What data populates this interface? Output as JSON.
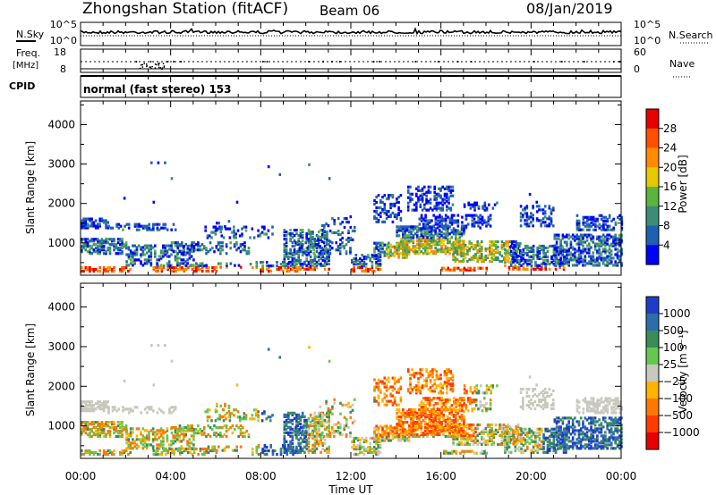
{
  "header": {
    "station": "Zhongshan Station (fitACF)",
    "beam": "Beam 06",
    "date": "08/Jan/2019"
  },
  "top_panels": {
    "nsky_label": "N.Sky",
    "nsearch_label": "N.Search",
    "nsky_ticks": [
      "10^5",
      "10^0"
    ],
    "nsearch_ticks": [
      "10^5",
      "10^0"
    ],
    "freq_label": "Freq.",
    "freq_unit": "[MHz]",
    "freq_ticks": [
      "18",
      "8"
    ],
    "nave_label": "Nave",
    "nave_ticks": [
      "60",
      "0"
    ],
    "cpid_label": "CPID",
    "cpid_value": "normal (fast stereo) 153"
  },
  "chart_data": [
    {
      "type": "heatmap",
      "title": "",
      "xlabel": "Time UT",
      "ylabel": "Slant Range [km]",
      "x_ticks": [
        "00:00",
        "04:00",
        "08:00",
        "12:00",
        "16:00",
        "20:00",
        "00:00"
      ],
      "y_ticks": [
        1000,
        2000,
        3000,
        4000
      ],
      "xlim": [
        0,
        24
      ],
      "ylim": [
        180,
        4600
      ],
      "colorbar": {
        "label": "Power [dB]",
        "ticks": [
          "4",
          "8",
          "12",
          "16",
          "20",
          "24",
          "28"
        ],
        "colors": [
          "#0000ff",
          "#2060b0",
          "#3c8c78",
          "#5cb440",
          "#e6c800",
          "#ff8c00",
          "#ff5000",
          "#e60000"
        ]
      }
    },
    {
      "type": "heatmap",
      "title": "",
      "xlabel": "Time UT",
      "ylabel": "Slant Range [km]",
      "x_ticks": [
        "00:00",
        "04:00",
        "08:00",
        "12:00",
        "16:00",
        "20:00",
        "00:00"
      ],
      "y_ticks": [
        1000,
        2000,
        3000,
        4000
      ],
      "xlim": [
        0,
        24
      ],
      "ylim": [
        180,
        4600
      ],
      "colorbar": {
        "label": "Velocity [m s⁻¹]",
        "ticks": [
          "1000",
          "500",
          "100",
          "25",
          "−25",
          "−100",
          "−500",
          "−1000"
        ],
        "colors": [
          "#1e3cc8",
          "#2d6eaa",
          "#3c8c5a",
          "#64c850",
          "#c8c8be",
          "#ffb400",
          "#ff7800",
          "#ff3c00",
          "#e60000"
        ]
      }
    }
  ]
}
